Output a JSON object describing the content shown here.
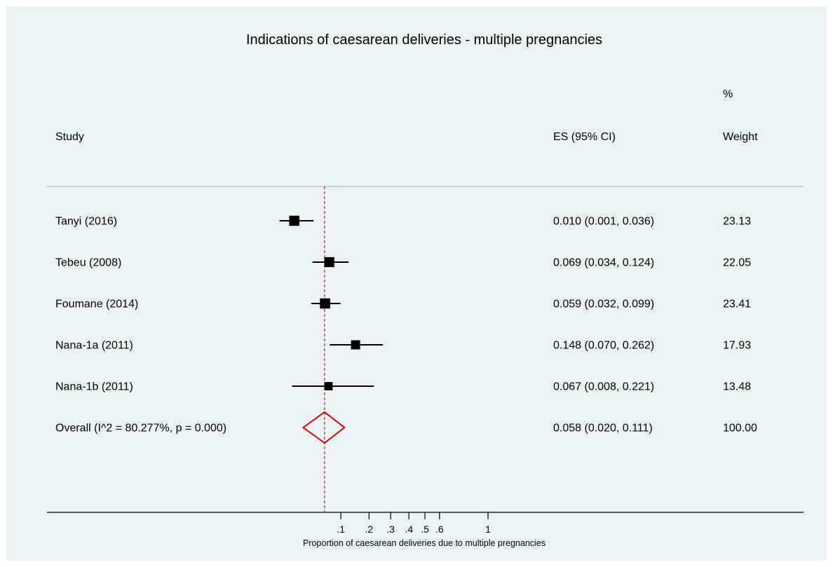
{
  "chart_data": {
    "type": "forest",
    "title": "Indications of caesarean deliveries - multiple pregnancies",
    "xlabel": "Proportion of caesarean deliveries due to multiple pregnancies",
    "x_scale": "sqrt",
    "x_ticks": [
      0.1,
      0.2,
      0.3,
      0.4,
      0.5,
      0.6,
      1
    ],
    "x_tick_labels": [
      ".1",
      ".2",
      ".3",
      ".4",
      ".5",
      ".6",
      "1"
    ],
    "headers": {
      "study": "Study",
      "es": "ES (95% CI)",
      "weight_top": "%",
      "weight": "Weight"
    },
    "studies": [
      {
        "label": "Tanyi (2016)",
        "es": 0.01,
        "lo": 0.001,
        "hi": 0.036,
        "es_text": "0.010 (0.001, 0.036)",
        "weight": "23.13"
      },
      {
        "label": "Tebeu (2008)",
        "es": 0.069,
        "lo": 0.034,
        "hi": 0.124,
        "es_text": "0.069 (0.034, 0.124)",
        "weight": "22.05"
      },
      {
        "label": "Foumane (2014)",
        "es": 0.059,
        "lo": 0.032,
        "hi": 0.099,
        "es_text": "0.059 (0.032, 0.099)",
        "weight": "23.41"
      },
      {
        "label": "Nana-1a (2011)",
        "es": 0.148,
        "lo": 0.07,
        "hi": 0.262,
        "es_text": "0.148 (0.070, 0.262)",
        "weight": "17.93"
      },
      {
        "label": "Nana-1b (2011)",
        "es": 0.067,
        "lo": 0.008,
        "hi": 0.221,
        "es_text": "0.067 (0.008, 0.221)",
        "weight": "13.48"
      }
    ],
    "overall": {
      "label": "Overall  (I^2 = 80.277%, p = 0.000)",
      "es": 0.058,
      "lo": 0.02,
      "hi": 0.111,
      "es_text": "0.058 (0.020, 0.111)",
      "weight": "100.00"
    },
    "colors": {
      "background": "#eaf2f3",
      "marker": "#000000",
      "diamond": "#e00000",
      "reference_line": "#b03030",
      "separator": "#bfbfbf"
    }
  }
}
